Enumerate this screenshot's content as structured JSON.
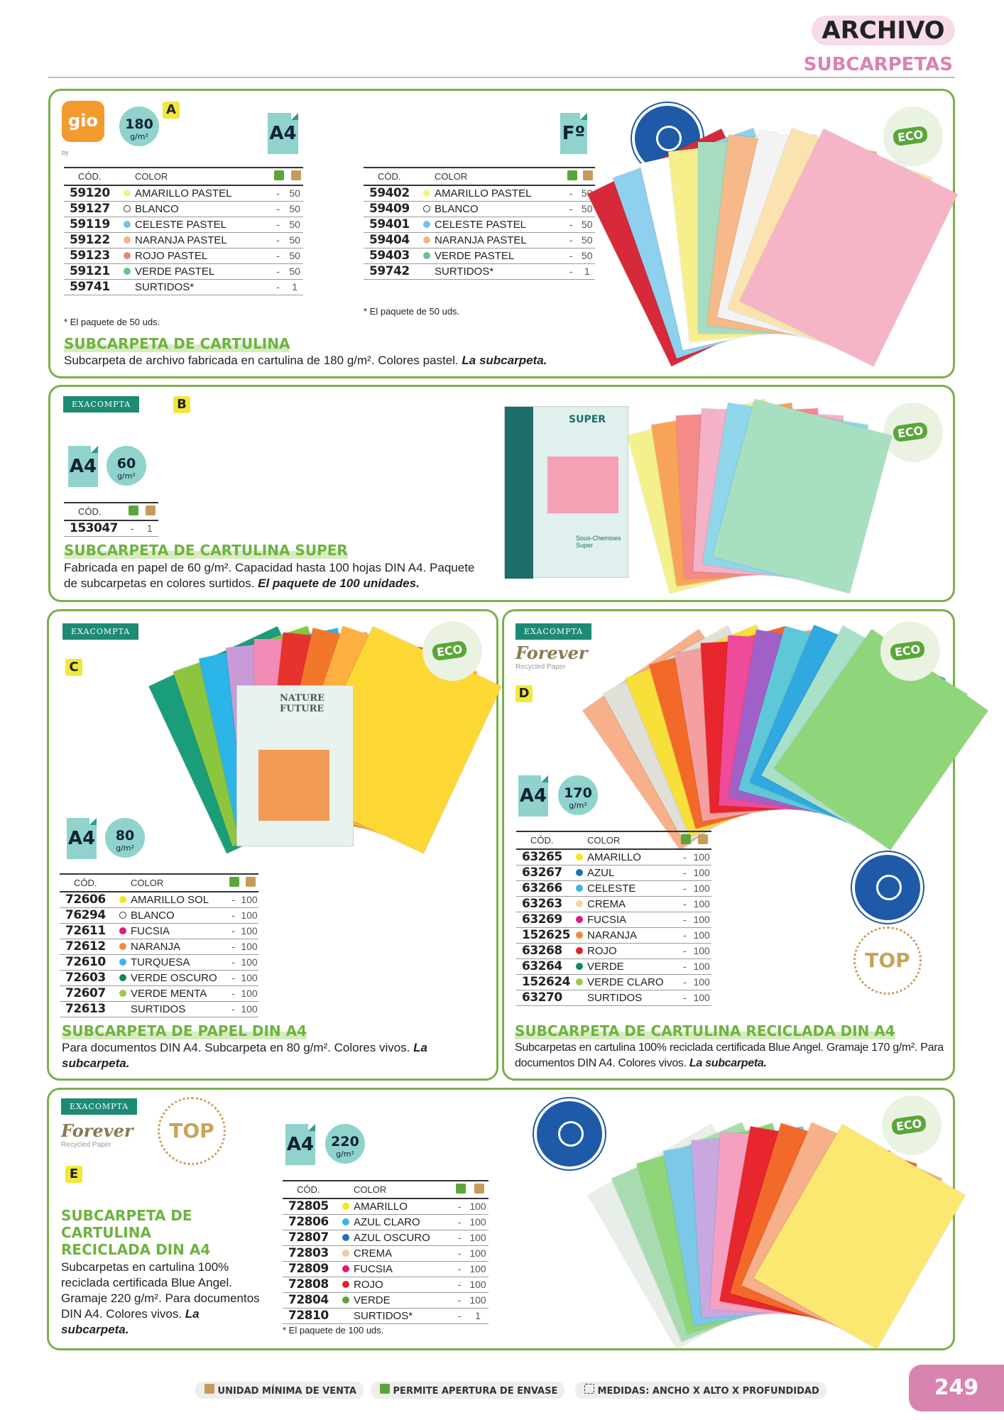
{
  "header": {
    "section": "ARCHIVO",
    "subsection": "SUBCARPETAS"
  },
  "A": {
    "letter": "A",
    "brand": "gio",
    "brand_by": "by",
    "gsm": "180",
    "gsm_unit": "g/m²",
    "format1": "A4",
    "format2": "Fº",
    "col_code": "CÓD.",
    "col_color": "COLOR",
    "table1": [
      [
        "59120",
        "AMARILLO PASTEL",
        "#f8f08a",
        "-",
        "50"
      ],
      [
        "59127",
        "BLANCO",
        "white",
        "-",
        "50"
      ],
      [
        "59119",
        "CELESTE PASTEL",
        "#6ec3ea",
        "-",
        "50"
      ],
      [
        "59122",
        "NARANJA PASTEL",
        "#f2b48a",
        "-",
        "50"
      ],
      [
        "59123",
        "ROJO PASTEL",
        "#f08080",
        "-",
        "50"
      ],
      [
        "59121",
        "VERDE PASTEL",
        "#6cc08e",
        "-",
        "50"
      ],
      [
        "59741",
        "SURTIDOS*",
        "",
        "-",
        "1"
      ]
    ],
    "table2": [
      [
        "59402",
        "AMARILLO PASTEL",
        "#f8f08a",
        "-",
        "50"
      ],
      [
        "59409",
        "BLANCO",
        "white",
        "-",
        "50"
      ],
      [
        "59401",
        "CELESTE PASTEL",
        "#6ec3ea",
        "-",
        "50"
      ],
      [
        "59404",
        "NARANJA PASTEL",
        "#f2b48a",
        "-",
        "50"
      ],
      [
        "59403",
        "VERDE PASTEL",
        "#6cc08e",
        "-",
        "50"
      ],
      [
        "59742",
        "SURTIDOS*",
        "",
        "-",
        "1"
      ]
    ],
    "note1": "* El paquete de 50 uds.",
    "note2": "* El paquete de 50 uds.",
    "title": "SUBCARPETA DE CARTULINA",
    "desc": "Subcarpeta de archivo fabricada en cartulina de 180 g/m². Colores pastel. ",
    "desc_bold": "La subcarpeta.",
    "eco": "ECO",
    "angel": "BLUE ANGEL",
    "sheets": [
      "#d62a3a",
      "#8fd0ee",
      "#ffffff",
      "#f7ef8c",
      "#a8dcc0",
      "#f7b98a",
      "#f3f3f3",
      "#fbe3b0",
      "#f5b5c6"
    ]
  },
  "B": {
    "letter": "B",
    "brand": "EXACOMPTA",
    "format": "A4",
    "gsm": "60",
    "gsm_unit": "g/m²",
    "col_code": "CÓD.",
    "table": [
      [
        "153047",
        "",
        "",
        "-",
        "1"
      ]
    ],
    "title": "SUBCARPETA DE CARTULINA SUPER",
    "desc": "Fabricada en papel de 60 g/m². Capacidad hasta 100 hojas DIN A4. Paquete de subcarpetas en colores surtidos. ",
    "desc_bold": "El paquete de 100 unidades.",
    "pack_title": "SUPER",
    "pack_sub": "Sous-Chemises Super",
    "eco": "ECO",
    "sheets": [
      "#f4f08c",
      "#f7a35a",
      "#f58a8a",
      "#f3b2c8",
      "#90d6ea",
      "#a6e0c0"
    ]
  },
  "C": {
    "letter": "C",
    "brand": "EXACOMPTA",
    "format": "A4",
    "gsm": "80",
    "gsm_unit": "g/m²",
    "col_code": "CÓD.",
    "col_color": "COLOR",
    "table": [
      [
        "72606",
        "AMARILLO SOL",
        "#f5e51a",
        "-",
        "100"
      ],
      [
        "76294",
        "BLANCO",
        "white",
        "-",
        "100"
      ],
      [
        "72611",
        "FUCSIA",
        "#e0197d",
        "-",
        "100"
      ],
      [
        "72612",
        "NARANJA",
        "#f08a3c",
        "-",
        "100"
      ],
      [
        "72610",
        "TURQUESA",
        "#3ab4e6",
        "-",
        "100"
      ],
      [
        "72603",
        "VERDE OSCURO",
        "#0f8a55",
        "-",
        "100"
      ],
      [
        "72607",
        "VERDE MENTA",
        "#a0c84a",
        "-",
        "100"
      ],
      [
        "72613",
        "SURTIDOS",
        "",
        "-",
        "100"
      ]
    ],
    "title": "SUBCARPETA DE PAPEL DIN A4",
    "desc": "Para documentos DIN A4. Subcarpeta en 80 g/m². Colores vivos. ",
    "desc_bold": "La subcarpeta.",
    "pack_title": "NATURE FUTURE",
    "eco": "ECO",
    "sheets": [
      "#1a9e7a",
      "#8cc63f",
      "#2bb5e8",
      "#c89ad8",
      "#f28bb5",
      "#e8322d",
      "#f3772b",
      "#fbb040",
      "#fdd835"
    ]
  },
  "D": {
    "letter": "D",
    "brand": "EXACOMPTA",
    "brand2": "Forever",
    "brand2_sub": "Recycled Paper",
    "format": "A4",
    "gsm": "170",
    "gsm_unit": "g/m²",
    "col_code": "CÓD.",
    "col_color": "COLOR",
    "table": [
      [
        "63265",
        "AMARILLO",
        "#f5e51a",
        "-",
        "100"
      ],
      [
        "63267",
        "AZUL",
        "#1f6fb5",
        "-",
        "100"
      ],
      [
        "63266",
        "CELESTE",
        "#3ab4e6",
        "-",
        "100"
      ],
      [
        "63263",
        "CREMA",
        "#f2d8a0",
        "-",
        "100"
      ],
      [
        "63269",
        "FUCSIA",
        "#e0197d",
        "-",
        "100"
      ],
      [
        "152625",
        "NARANJA",
        "#f08a3c",
        "-",
        "100"
      ],
      [
        "63268",
        "ROJO",
        "#e0232d",
        "-",
        "100"
      ],
      [
        "63264",
        "VERDE",
        "#0f8a55",
        "-",
        "100"
      ],
      [
        "152624",
        "VERDE CLARO",
        "#a0c84a",
        "-",
        "100"
      ],
      [
        "63270",
        "SURTIDOS",
        "",
        "-",
        "100"
      ]
    ],
    "title": "SUBCARPETA DE CARTULINA RECICLADA DIN A4",
    "desc": "Subcarpetas en cartulina 100% reciclada certificada Blue Angel. Gramaje 170 g/m². Para documentos DIN A4. Colores vivos. ",
    "desc_bold": "La subcarpeta.",
    "eco": "ECO",
    "angel": "BLUE ANGEL",
    "top": "TOP",
    "sheets": [
      "#f7b08a",
      "#e0e0d8",
      "#f7e03a",
      "#f2692a",
      "#f5a0a0",
      "#e8262d",
      "#ee4b9a",
      "#a060c8",
      "#5fc8d8",
      "#30a8e0",
      "#a8e0c8",
      "#8fd67a"
    ]
  },
  "E": {
    "letter": "E",
    "brand": "EXACOMPTA",
    "brand2": "Forever",
    "brand2_sub": "Recycled Paper",
    "top": "TOP",
    "format": "A4",
    "gsm": "220",
    "gsm_unit": "g/m²",
    "col_code": "CÓD.",
    "col_color": "COLOR",
    "table": [
      [
        "72805",
        "AMARILLO",
        "#f5e51a",
        "-",
        "100"
      ],
      [
        "72806",
        "AZUL CLARO",
        "#3ab4e6",
        "-",
        "100"
      ],
      [
        "72807",
        "AZUL OSCURO",
        "#1f6fb5",
        "-",
        "100"
      ],
      [
        "72803",
        "CREMA",
        "#f2c8a0",
        "-",
        "100"
      ],
      [
        "72809",
        "FUCSIA",
        "#e0197d",
        "-",
        "100"
      ],
      [
        "72808",
        "ROJO",
        "#e0232d",
        "-",
        "100"
      ],
      [
        "72804",
        "VERDE",
        "#5aa63a",
        "-",
        "100"
      ],
      [
        "72810",
        "SURTIDOS*",
        "",
        "-",
        "1"
      ]
    ],
    "note": "* El paquete de 100 uds.",
    "title": "SUBCARPETA DE CARTULINA RECICLADA DIN A4",
    "desc": "Subcarpetas en cartulina 100% reciclada certificada Blue Angel. Gramaje 220 g/m². Para documentos DIN A4. Colores vivos. ",
    "desc_bold": "La subcarpeta.",
    "eco": "ECO",
    "angel": "BLUE ANGEL",
    "sheets": [
      "#e8eee8",
      "#a8dcb0",
      "#8fd67a",
      "#7cc8e8",
      "#c8a8e0",
      "#f5a0c0",
      "#e8262d",
      "#f2692a",
      "#f7b08a",
      "#fbe870"
    ]
  },
  "footer": {
    "min_unit": "UNIDAD MÍNIMA DE VENTA",
    "open_pack": "PERMITE APERTURA DE ENVASE",
    "measures": "MEDIDAS: ANCHO X ALTO X PROFUNDIDAD",
    "page": "249"
  }
}
